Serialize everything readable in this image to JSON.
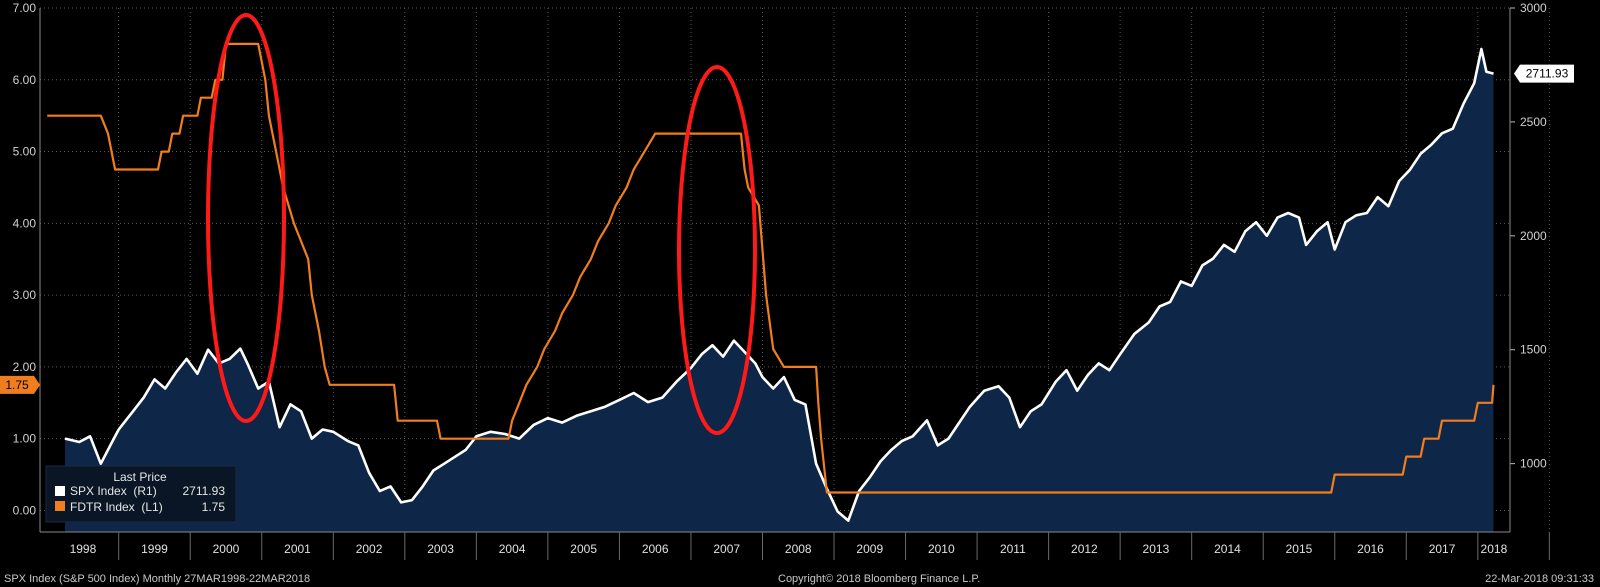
{
  "chart_data": {
    "type": "line",
    "left_axis": {
      "range": [
        -0.3,
        7.0
      ],
      "ticks": [
        "0.00",
        "1.00",
        "2.00",
        "3.00",
        "4.00",
        "5.00",
        "6.00",
        "7.00"
      ]
    },
    "right_axis": {
      "range": [
        700,
        3000
      ],
      "ticks": [
        "1000",
        "1500",
        "2000",
        "2500",
        "3000"
      ]
    },
    "x_labels": [
      "1998",
      "1999",
      "2000",
      "2001",
      "2002",
      "2003",
      "2004",
      "2005",
      "2006",
      "2007",
      "2008",
      "2009",
      "2010",
      "2011",
      "2012",
      "2013",
      "2014",
      "2015",
      "2016",
      "2017",
      "2018"
    ],
    "grid": true,
    "legend": {
      "placement": "bottom-left",
      "title": "Last Price",
      "entries": [
        {
          "label": "SPX Index  (R1)",
          "value": "2711.93",
          "color": "#ffffff"
        },
        {
          "label": "FDTR Index  (L1)",
          "value": "1.75",
          "color": "#f07d1e"
        }
      ]
    },
    "last_value_labels": {
      "spx": "2711.93",
      "fdtr": "1.75"
    },
    "series": [
      {
        "name": "SPX Index",
        "axis": "right",
        "color": "#ffffff",
        "points": [
          [
            1998.25,
            1110
          ],
          [
            1998.45,
            1095
          ],
          [
            1998.6,
            1120
          ],
          [
            1998.75,
            1000
          ],
          [
            1998.9,
            1090
          ],
          [
            1999.0,
            1150
          ],
          [
            1999.2,
            1230
          ],
          [
            1999.35,
            1290
          ],
          [
            1999.5,
            1370
          ],
          [
            1999.65,
            1330
          ],
          [
            1999.8,
            1400
          ],
          [
            1999.95,
            1460
          ],
          [
            2000.1,
            1395
          ],
          [
            2000.25,
            1500
          ],
          [
            2000.4,
            1440
          ],
          [
            2000.55,
            1460
          ],
          [
            2000.7,
            1505
          ],
          [
            2000.8,
            1440
          ],
          [
            2000.95,
            1330
          ],
          [
            2001.1,
            1360
          ],
          [
            2001.25,
            1160
          ],
          [
            2001.4,
            1260
          ],
          [
            2001.55,
            1230
          ],
          [
            2001.7,
            1110
          ],
          [
            2001.85,
            1150
          ],
          [
            2002.0,
            1140
          ],
          [
            2002.2,
            1100
          ],
          [
            2002.35,
            1080
          ],
          [
            2002.5,
            960
          ],
          [
            2002.65,
            880
          ],
          [
            2002.8,
            900
          ],
          [
            2002.95,
            830
          ],
          [
            2003.1,
            840
          ],
          [
            2003.25,
            900
          ],
          [
            2003.4,
            970
          ],
          [
            2003.55,
            1000
          ],
          [
            2003.7,
            1030
          ],
          [
            2003.85,
            1060
          ],
          [
            2004.0,
            1120
          ],
          [
            2004.2,
            1140
          ],
          [
            2004.4,
            1130
          ],
          [
            2004.6,
            1110
          ],
          [
            2004.8,
            1170
          ],
          [
            2005.0,
            1200
          ],
          [
            2005.2,
            1180
          ],
          [
            2005.4,
            1210
          ],
          [
            2005.6,
            1230
          ],
          [
            2005.8,
            1250
          ],
          [
            2006.0,
            1280
          ],
          [
            2006.2,
            1310
          ],
          [
            2006.4,
            1270
          ],
          [
            2006.6,
            1290
          ],
          [
            2006.8,
            1360
          ],
          [
            2007.0,
            1420
          ],
          [
            2007.15,
            1480
          ],
          [
            2007.3,
            1520
          ],
          [
            2007.45,
            1470
          ],
          [
            2007.6,
            1540
          ],
          [
            2007.75,
            1490
          ],
          [
            2007.9,
            1440
          ],
          [
            2008.0,
            1380
          ],
          [
            2008.15,
            1330
          ],
          [
            2008.3,
            1380
          ],
          [
            2008.45,
            1280
          ],
          [
            2008.6,
            1260
          ],
          [
            2008.75,
            1000
          ],
          [
            2008.9,
            890
          ],
          [
            2009.05,
            790
          ],
          [
            2009.2,
            750
          ],
          [
            2009.35,
            880
          ],
          [
            2009.5,
            940
          ],
          [
            2009.65,
            1010
          ],
          [
            2009.8,
            1060
          ],
          [
            2009.95,
            1100
          ],
          [
            2010.1,
            1120
          ],
          [
            2010.3,
            1190
          ],
          [
            2010.45,
            1080
          ],
          [
            2010.6,
            1110
          ],
          [
            2010.75,
            1180
          ],
          [
            2010.9,
            1250
          ],
          [
            2011.1,
            1320
          ],
          [
            2011.3,
            1340
          ],
          [
            2011.45,
            1290
          ],
          [
            2011.6,
            1160
          ],
          [
            2011.75,
            1230
          ],
          [
            2011.9,
            1260
          ],
          [
            2012.1,
            1360
          ],
          [
            2012.25,
            1410
          ],
          [
            2012.4,
            1320
          ],
          [
            2012.55,
            1390
          ],
          [
            2012.7,
            1440
          ],
          [
            2012.85,
            1410
          ],
          [
            2013.0,
            1480
          ],
          [
            2013.2,
            1570
          ],
          [
            2013.4,
            1620
          ],
          [
            2013.55,
            1690
          ],
          [
            2013.7,
            1710
          ],
          [
            2013.85,
            1800
          ],
          [
            2014.0,
            1780
          ],
          [
            2014.15,
            1870
          ],
          [
            2014.3,
            1900
          ],
          [
            2014.45,
            1960
          ],
          [
            2014.6,
            1930
          ],
          [
            2014.75,
            2020
          ],
          [
            2014.9,
            2060
          ],
          [
            2015.05,
            2000
          ],
          [
            2015.2,
            2080
          ],
          [
            2015.35,
            2100
          ],
          [
            2015.5,
            2080
          ],
          [
            2015.6,
            1960
          ],
          [
            2015.75,
            2020
          ],
          [
            2015.9,
            2060
          ],
          [
            2016.0,
            1940
          ],
          [
            2016.15,
            2060
          ],
          [
            2016.3,
            2090
          ],
          [
            2016.45,
            2100
          ],
          [
            2016.6,
            2170
          ],
          [
            2016.75,
            2130
          ],
          [
            2016.9,
            2240
          ],
          [
            2017.05,
            2290
          ],
          [
            2017.2,
            2360
          ],
          [
            2017.35,
            2400
          ],
          [
            2017.5,
            2450
          ],
          [
            2017.65,
            2470
          ],
          [
            2017.8,
            2580
          ],
          [
            2017.95,
            2670
          ],
          [
            2018.05,
            2820
          ],
          [
            2018.12,
            2720
          ],
          [
            2018.22,
            2711.93
          ]
        ]
      },
      {
        "name": "FDTR Index",
        "axis": "left",
        "color": "#f07d1e",
        "points": [
          [
            1998.0,
            5.5
          ],
          [
            1998.75,
            5.5
          ],
          [
            1998.85,
            5.25
          ],
          [
            1998.95,
            4.75
          ],
          [
            1999.55,
            4.75
          ],
          [
            1999.6,
            5.0
          ],
          [
            1999.7,
            5.0
          ],
          [
            1999.75,
            5.25
          ],
          [
            1999.85,
            5.25
          ],
          [
            1999.9,
            5.5
          ],
          [
            2000.1,
            5.5
          ],
          [
            2000.15,
            5.75
          ],
          [
            2000.3,
            5.75
          ],
          [
            2000.35,
            6.0
          ],
          [
            2000.45,
            6.0
          ],
          [
            2000.5,
            6.5
          ],
          [
            2000.95,
            6.5
          ],
          [
            2001.05,
            6.0
          ],
          [
            2001.1,
            5.5
          ],
          [
            2001.2,
            5.0
          ],
          [
            2001.3,
            4.5
          ],
          [
            2001.45,
            4.0
          ],
          [
            2001.55,
            3.75
          ],
          [
            2001.65,
            3.5
          ],
          [
            2001.7,
            3.0
          ],
          [
            2001.8,
            2.5
          ],
          [
            2001.88,
            2.0
          ],
          [
            2001.95,
            1.75
          ],
          [
            2002.85,
            1.75
          ],
          [
            2002.9,
            1.25
          ],
          [
            2003.45,
            1.25
          ],
          [
            2003.5,
            1.0
          ],
          [
            2004.45,
            1.0
          ],
          [
            2004.5,
            1.25
          ],
          [
            2004.6,
            1.5
          ],
          [
            2004.7,
            1.75
          ],
          [
            2004.85,
            2.0
          ],
          [
            2004.95,
            2.25
          ],
          [
            2005.1,
            2.5
          ],
          [
            2005.2,
            2.75
          ],
          [
            2005.35,
            3.0
          ],
          [
            2005.45,
            3.25
          ],
          [
            2005.6,
            3.5
          ],
          [
            2005.7,
            3.75
          ],
          [
            2005.85,
            4.0
          ],
          [
            2005.95,
            4.25
          ],
          [
            2006.1,
            4.5
          ],
          [
            2006.2,
            4.75
          ],
          [
            2006.35,
            5.0
          ],
          [
            2006.5,
            5.25
          ],
          [
            2007.7,
            5.25
          ],
          [
            2007.75,
            4.75
          ],
          [
            2007.8,
            4.5
          ],
          [
            2007.95,
            4.25
          ],
          [
            2008.05,
            3.0
          ],
          [
            2008.15,
            2.25
          ],
          [
            2008.3,
            2.0
          ],
          [
            2008.75,
            2.0
          ],
          [
            2008.78,
            1.5
          ],
          [
            2008.82,
            1.0
          ],
          [
            2008.9,
            0.25
          ],
          [
            2015.95,
            0.25
          ],
          [
            2016.0,
            0.5
          ],
          [
            2016.95,
            0.5
          ],
          [
            2017.0,
            0.75
          ],
          [
            2017.2,
            0.75
          ],
          [
            2017.25,
            1.0
          ],
          [
            2017.45,
            1.0
          ],
          [
            2017.5,
            1.25
          ],
          [
            2017.95,
            1.25
          ],
          [
            2018.0,
            1.5
          ],
          [
            2018.2,
            1.5
          ],
          [
            2018.22,
            1.75
          ]
        ]
      }
    ]
  },
  "footer": {
    "left": "SPX Index (S&P 500 Index)  Monthly 27MAR1998-22MAR2018",
    "center": "Copyright© 2018 Bloomberg Finance L.P.",
    "right": "22-Mar-2018 09:31:33"
  }
}
